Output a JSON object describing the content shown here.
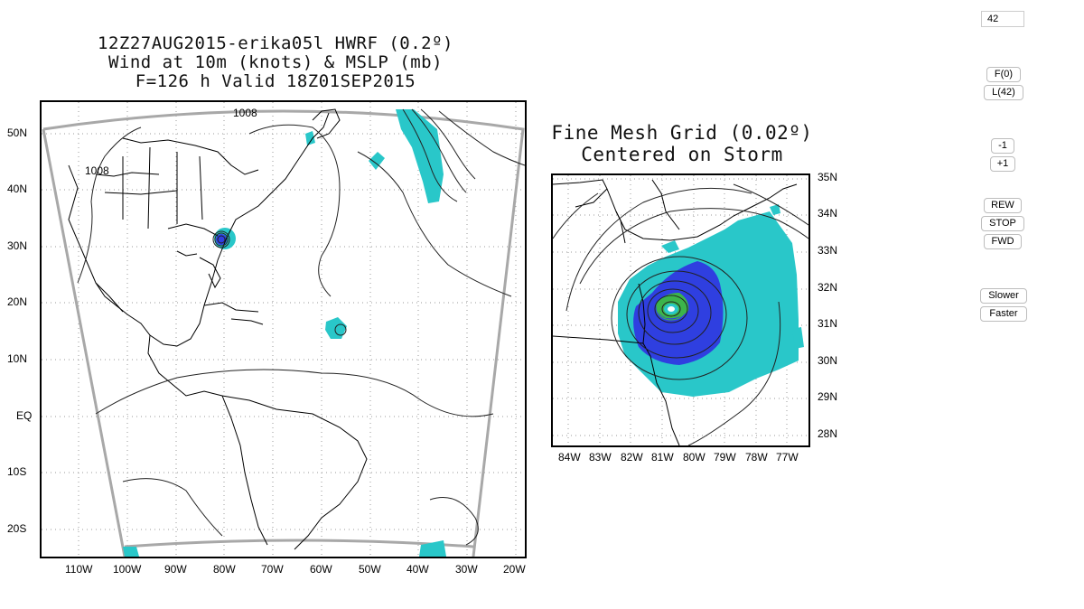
{
  "main_map": {
    "title_lines": [
      "12Z27AUG2015-erika05l HWRF (0.2º)",
      "Wind at 10m (knots) & MSLP (mb)",
      "F=126 h Valid 18Z01SEP2015"
    ],
    "lat_labels": [
      "50N",
      "40N",
      "30N",
      "20N",
      "10N",
      "EQ",
      "10S",
      "20S"
    ],
    "lon_labels": [
      "110W",
      "100W",
      "90W",
      "80W",
      "70W",
      "60W",
      "50W",
      "40W",
      "30W",
      "20W"
    ],
    "contour_labels": [
      "1008",
      "1008"
    ]
  },
  "fine_mesh": {
    "title_lines": [
      "Fine Mesh Grid (0.02º)",
      "Centered on Storm"
    ],
    "lat_labels": [
      "35N",
      "34N",
      "33N",
      "32N",
      "31N",
      "30N",
      "29N",
      "28N"
    ],
    "lon_labels": [
      "84W",
      "83W",
      "82W",
      "81W",
      "80W",
      "79W",
      "78W",
      "77W"
    ]
  },
  "controls": {
    "frame_value": "42",
    "first_label": "F(0)",
    "last_label": "L(42)",
    "minus_label": "-1",
    "plus_label": "+1",
    "rew_label": "REW",
    "stop_label": "STOP",
    "fwd_label": "FWD",
    "slower_label": "Slower",
    "faster_label": "Faster"
  },
  "colors": {
    "wind_cyan": "#29c7c9",
    "wind_blue": "#2f3fe0",
    "wind_green": "#3cb44b",
    "boundary_gray": "#a8a8a8"
  }
}
